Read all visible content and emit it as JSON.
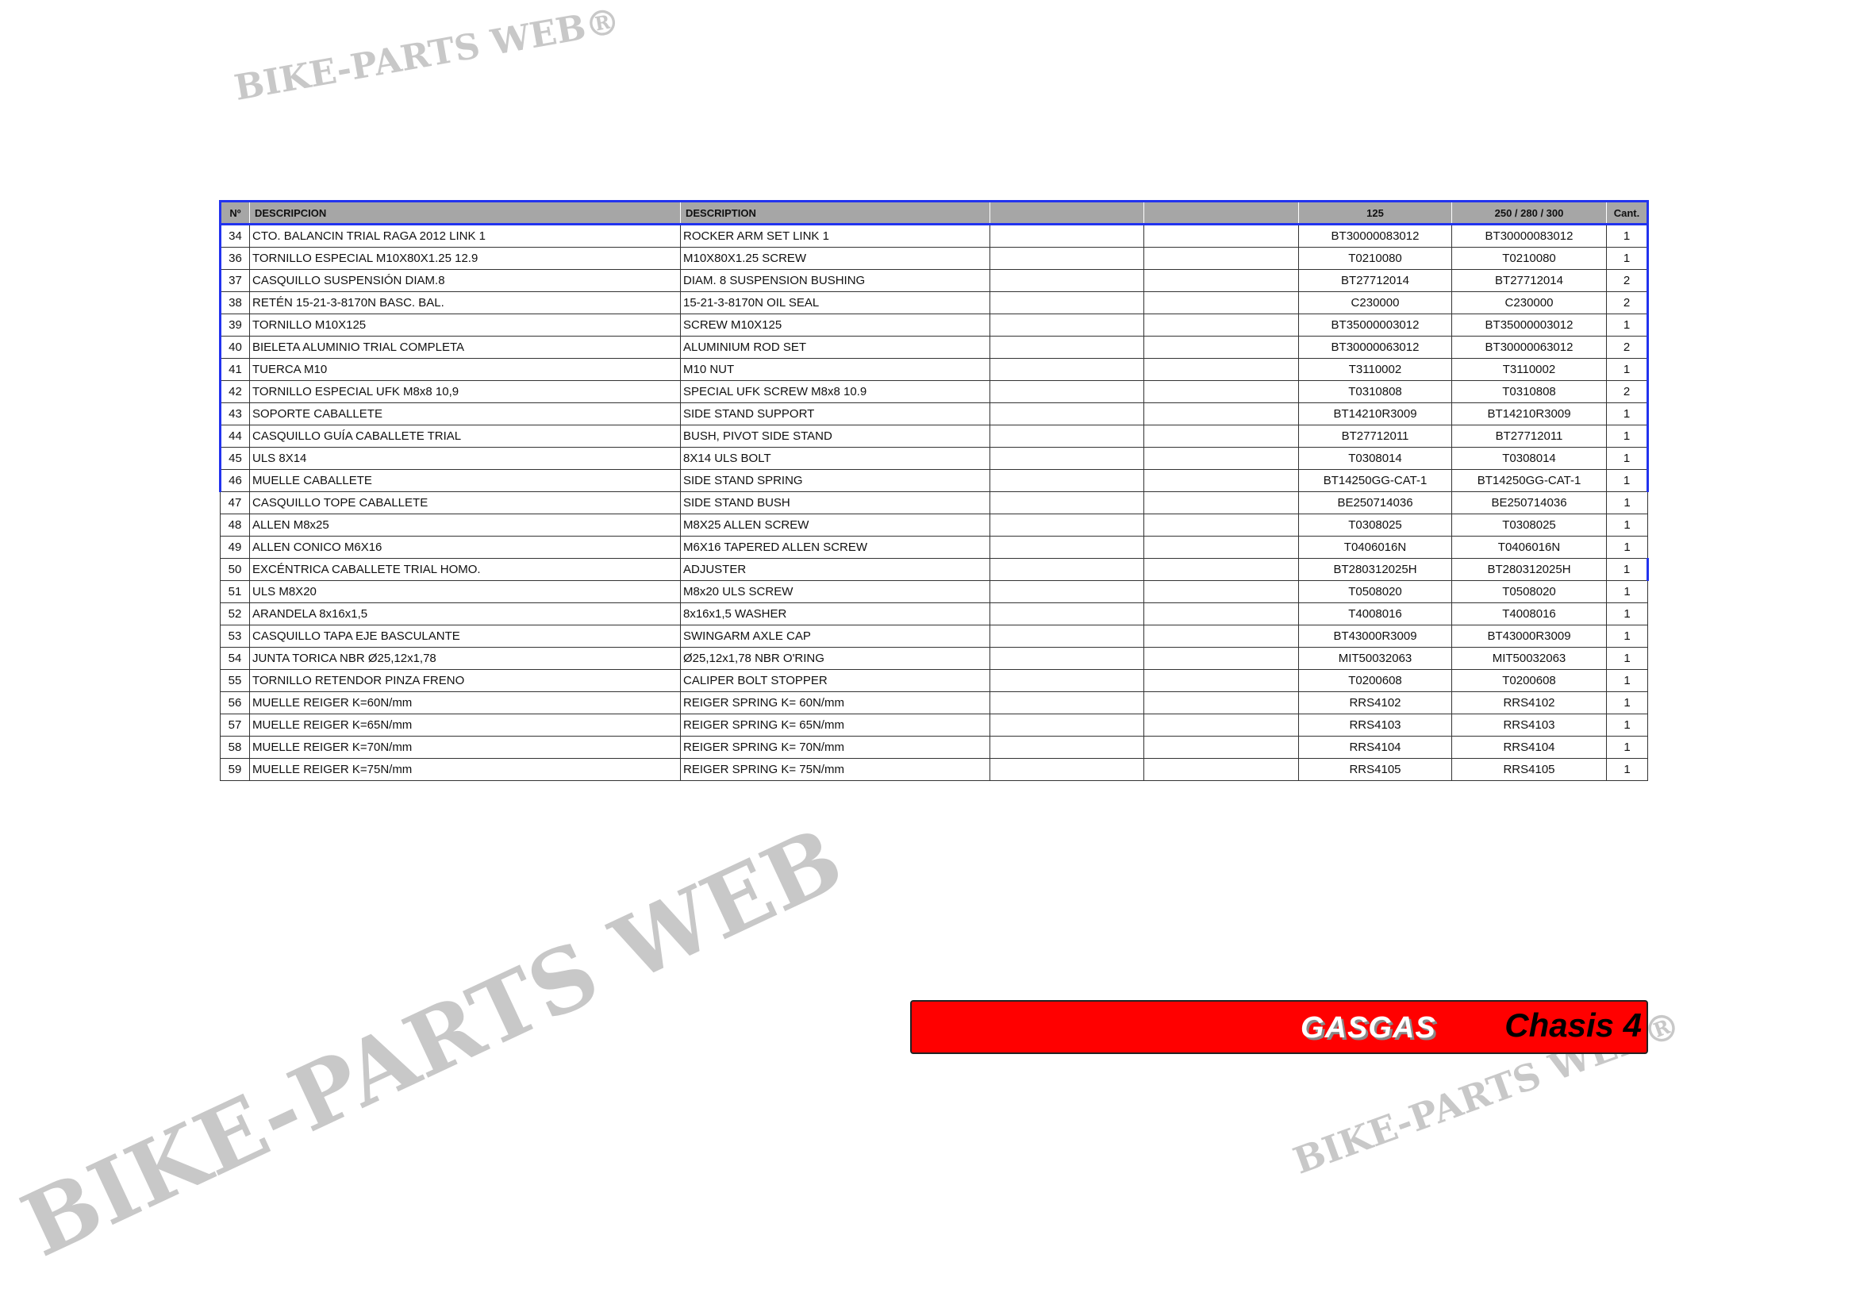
{
  "watermark": {
    "main": "BIKE-PARTS WEB",
    "small": "BIKE-PARTS WEB®"
  },
  "table": {
    "headers": [
      "Nº",
      "DESCRIPCION",
      "DESCRIPTION",
      "",
      "",
      "125",
      "250 / 280 / 300",
      "Cant."
    ],
    "rows": [
      [
        "34",
        "CTO. BALANCIN TRIAL RAGA 2012 LINK 1",
        "ROCKER ARM SET LINK 1",
        "",
        "",
        "BT30000083012",
        "BT30000083012",
        "1"
      ],
      [
        "36",
        "TORNILLO ESPECIAL M10X80X1.25 12.9",
        " M10X80X1.25 SCREW",
        "",
        "",
        "T0210080",
        "T0210080",
        "1"
      ],
      [
        "37",
        "CASQUILLO SUSPENSIÓN DIAM.8",
        "DIAM. 8 SUSPENSION BUSHING",
        "",
        "",
        "BT27712014",
        "BT27712014",
        "2"
      ],
      [
        "38",
        "RETÉN 15-21-3-8170N BASC. BAL.",
        "15-21-3-8170N OIL SEAL",
        "",
        "",
        "C230000",
        "C230000",
        "2"
      ],
      [
        "39",
        "TORNILLO M10X125",
        "SCREW M10X125",
        "",
        "",
        "BT35000003012",
        "BT35000003012",
        "1"
      ],
      [
        "40",
        "BIELETA ALUMINIO TRIAL COMPLETA",
        "ALUMINIUM ROD SET",
        "",
        "",
        "BT30000063012",
        "BT30000063012",
        "2"
      ],
      [
        "41",
        "TUERCA M10",
        " M10 NUT",
        "",
        "",
        "T3110002",
        "T3110002",
        "1"
      ],
      [
        "42",
        "TORNILLO ESPECIAL UFK M8x8 10,9",
        "SPECIAL UFK SCREW M8x8 10.9",
        "",
        "",
        "T0310808",
        "T0310808",
        "2"
      ],
      [
        "43",
        "SOPORTE CABALLETE",
        "SIDE STAND SUPPORT",
        "",
        "",
        "BT14210R3009",
        "BT14210R3009",
        "1"
      ],
      [
        "44",
        "CASQUILLO GUÍA CABALLETE TRIAL",
        "BUSH, PIVOT SIDE STAND",
        "",
        "",
        "BT27712011",
        "BT27712011",
        "1"
      ],
      [
        "45",
        "ULS 8X14",
        "8X14 ULS BOLT",
        "",
        "",
        "T0308014",
        "T0308014",
        "1"
      ],
      [
        "46",
        "MUELLE CABALLETE",
        "SIDE STAND SPRING",
        "",
        "",
        "BT14250GG-CAT-1",
        "BT14250GG-CAT-1",
        "1"
      ],
      [
        "47",
        "CASQUILLO TOPE CABALLETE",
        "SIDE STAND BUSH",
        "",
        "",
        "BE250714036",
        "BE250714036",
        "1"
      ],
      [
        "48",
        "ALLEN M8x25",
        "M8X25 ALLEN SCREW",
        "",
        "",
        "T0308025",
        "T0308025",
        "1"
      ],
      [
        "49",
        "ALLEN CONICO M6X16",
        "M6X16 TAPERED ALLEN SCREW",
        "",
        "",
        "T0406016N",
        "T0406016N",
        "1"
      ],
      [
        "50",
        "EXCÉNTRICA CABALLETE TRIAL HOMO.",
        "ADJUSTER",
        "",
        "",
        "BT280312025H",
        "BT280312025H",
        "1"
      ],
      [
        "51",
        "ULS M8X20",
        "M8x20 ULS SCREW",
        "",
        "",
        "T0508020",
        "T0508020",
        "1"
      ],
      [
        "52",
        "ARANDELA 8x16x1,5",
        "8x16x1,5 WASHER",
        "",
        "",
        "T4008016",
        "T4008016",
        "1"
      ],
      [
        "53",
        "CASQUILLO TAPA EJE BASCULANTE",
        "SWINGARM AXLE CAP",
        "",
        "",
        "BT43000R3009",
        "BT43000R3009",
        "1"
      ],
      [
        "54",
        "JUNTA TORICA NBR  Ø25,12x1,78",
        "Ø25,12x1,78 NBR O'RING",
        "",
        "",
        "MIT50032063",
        "MIT50032063",
        "1"
      ],
      [
        "55",
        "TORNILLO RETENDOR PINZA FRENO",
        "CALIPER BOLT STOPPER",
        "",
        "",
        "T0200608",
        "T0200608",
        "1"
      ],
      [
        "56",
        "MUELLE REIGER  K=60N/mm",
        "REIGER SPRING  K= 60N/mm",
        "",
        "",
        "RRS4102",
        "RRS4102",
        "1"
      ],
      [
        "57",
        "MUELLE REIGER  K=65N/mm",
        "REIGER SPRING  K= 65N/mm",
        "",
        "",
        "RRS4103",
        "RRS4103",
        "1"
      ],
      [
        "58",
        "MUELLE REIGER  K=70N/mm",
        "REIGER SPRING  K= 70N/mm",
        "",
        "",
        "RRS4104",
        "RRS4104",
        "1"
      ],
      [
        "59",
        "MUELLE REIGER  K=75N/mm",
        "REIGER SPRING  K= 75N/mm",
        "",
        "",
        "RRS4105",
        "RRS4105",
        "1"
      ]
    ]
  },
  "footer": {
    "brand": "GASGAS",
    "section": "Chasis 4",
    "color": "#ff0000"
  }
}
